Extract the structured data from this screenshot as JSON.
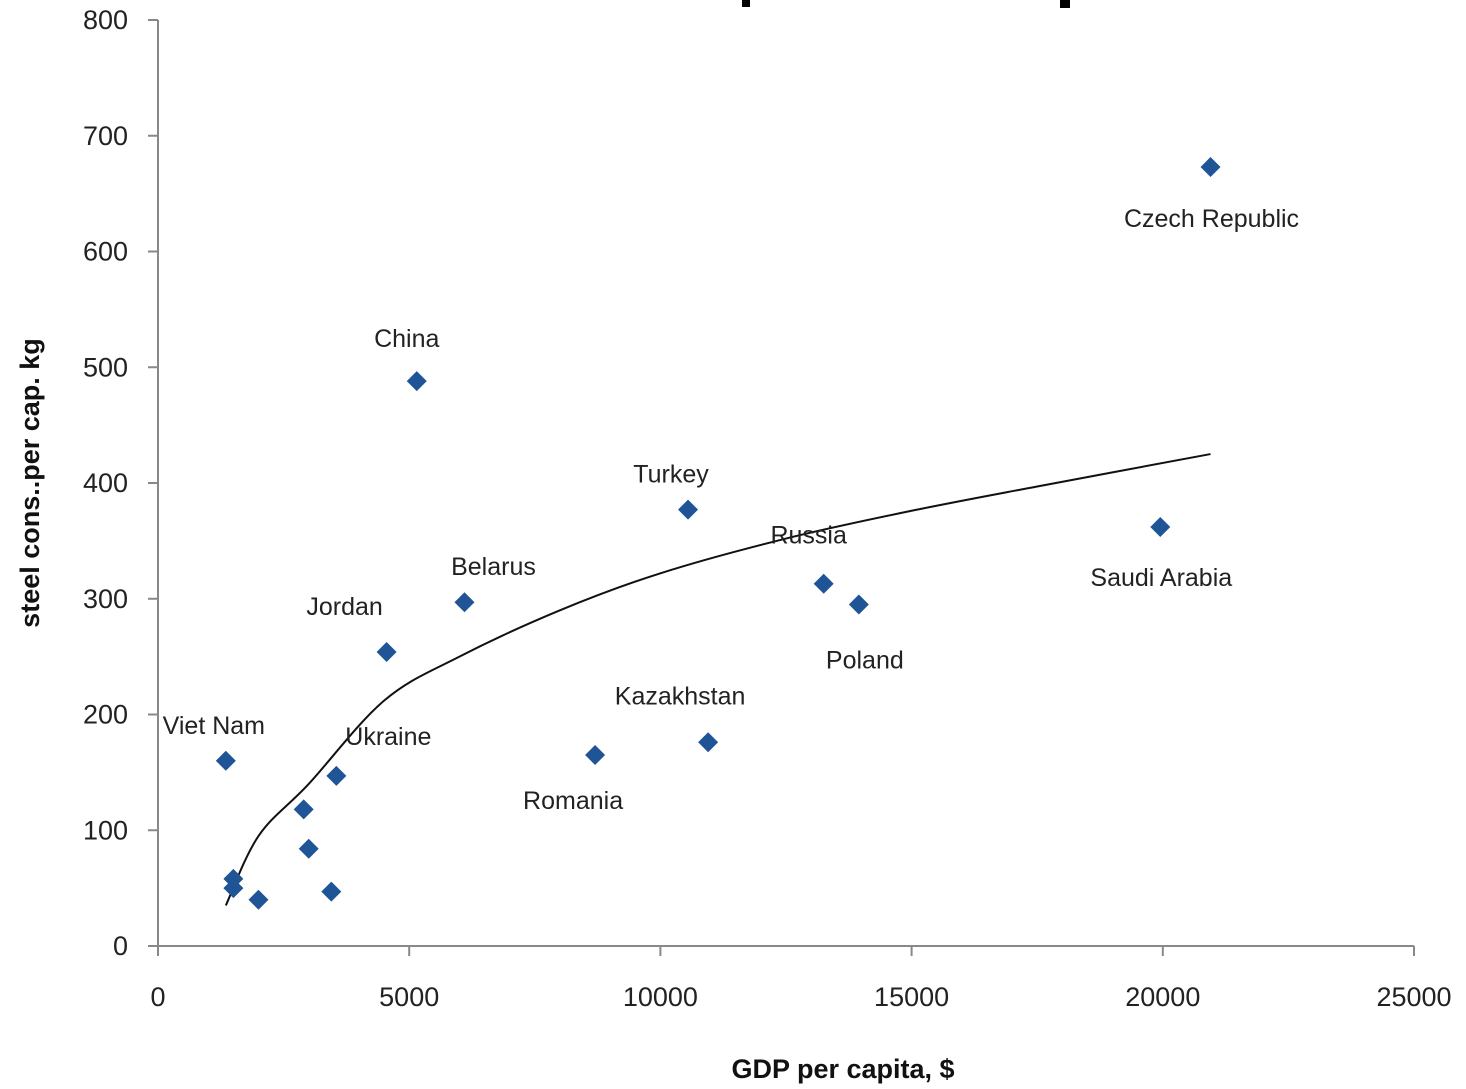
{
  "chart_data": {
    "type": "scatter",
    "xlabel": "GDP per capita, $",
    "ylabel": "steel cons..per cap. kg",
    "xlim": [
      0,
      25000
    ],
    "ylim": [
      0,
      800
    ],
    "x_ticks": [
      "0",
      "5000",
      "10000",
      "15000",
      "20000",
      "25000"
    ],
    "y_ticks": [
      "0",
      "100",
      "200",
      "300",
      "400",
      "500",
      "600",
      "700",
      "800"
    ],
    "grid": false,
    "legend": "none",
    "marker": "diamond",
    "point_color": "#1F5596",
    "series": [
      {
        "points": [
          {
            "x": 1350,
            "y": 160,
            "label": "Viet Nam"
          },
          {
            "x": 1500,
            "y": 58,
            "label": ""
          },
          {
            "x": 1500,
            "y": 50,
            "label": ""
          },
          {
            "x": 2000,
            "y": 40,
            "label": ""
          },
          {
            "x": 2900,
            "y": 118,
            "label": ""
          },
          {
            "x": 3000,
            "y": 84,
            "label": ""
          },
          {
            "x": 3450,
            "y": 47,
            "label": ""
          },
          {
            "x": 3550,
            "y": 147,
            "label": "Ukraine"
          },
          {
            "x": 4550,
            "y": 254,
            "label": "Jordan"
          },
          {
            "x": 5150,
            "y": 488,
            "label": "China"
          },
          {
            "x": 6100,
            "y": 297,
            "label": "Belarus"
          },
          {
            "x": 8700,
            "y": 165,
            "label": "Romania"
          },
          {
            "x": 10550,
            "y": 377,
            "label": "Turkey"
          },
          {
            "x": 10950,
            "y": 176,
            "label": "Kazakhstan"
          },
          {
            "x": 13250,
            "y": 313,
            "label": "Russia"
          },
          {
            "x": 13950,
            "y": 295,
            "label": "Poland"
          },
          {
            "x": 19950,
            "y": 362,
            "label": "Saudi Arabia"
          },
          {
            "x": 20950,
            "y": 673,
            "label": "Czech Republic"
          }
        ]
      }
    ],
    "trendline": {
      "type": "logarithmic",
      "x_start": 1350,
      "x_end": 20950,
      "points": [
        {
          "x": 1350,
          "y": 35
        },
        {
          "x": 2000,
          "y": 95
        },
        {
          "x": 3000,
          "y": 140
        },
        {
          "x": 4500,
          "y": 212
        },
        {
          "x": 6000,
          "y": 250
        },
        {
          "x": 8000,
          "y": 290
        },
        {
          "x": 10000,
          "y": 322
        },
        {
          "x": 12500,
          "y": 352
        },
        {
          "x": 15000,
          "y": 376
        },
        {
          "x": 17500,
          "y": 397
        },
        {
          "x": 20950,
          "y": 425
        }
      ]
    }
  }
}
